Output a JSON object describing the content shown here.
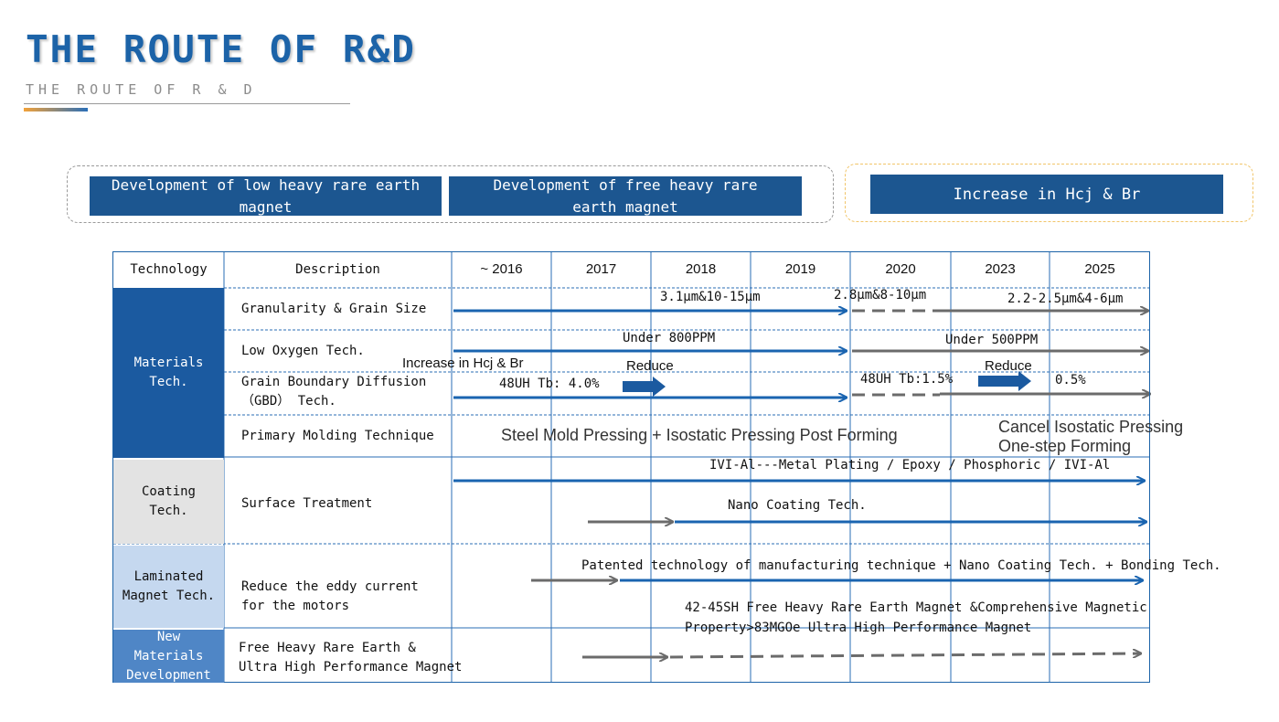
{
  "header": {
    "title": "THE ROUTE OF R&D",
    "subtitle": "THE ROUTE OF R & D"
  },
  "banners": [
    {
      "line1": "Development of low heavy rare earth",
      "line2": "magnet"
    },
    {
      "line1": "Development of free heavy rare",
      "line2": "earth magnet"
    },
    {
      "line1": "Increase in Hcj & Br",
      "line2": ""
    }
  ],
  "table": {
    "col_technology": "Technology",
    "col_description": "Description",
    "years": [
      "~ 2016",
      "2017",
      "2018",
      "2019",
      "2020",
      "2023",
      "2025"
    ],
    "categories": {
      "materials": {
        "line1": "Materials",
        "line2": "Tech."
      },
      "coating": {
        "line1": "Coating",
        "line2": "Tech."
      },
      "laminated": {
        "line1": "Laminated",
        "line2": "Magnet Tech."
      },
      "new_materials": {
        "line1": "New",
        "line2": "Materials",
        "line3": "Development"
      }
    },
    "descriptions": {
      "granularity": "Granularity & Grain Size",
      "low_oxygen": "Low Oxygen Tech.",
      "gbd_line1": "Grain Boundary Diffusion",
      "gbd_line2": "（GBD） Tech.",
      "molding": "Primary Molding Technique",
      "surface": "Surface Treatment",
      "eddy_line1": "Reduce the eddy current",
      "eddy_line2": "for the motors",
      "free_line1": "Free Heavy Rare Earth &",
      "free_line2": "Ultra High Performance Magnet"
    },
    "annotations": {
      "grain_1": "3.1μm&10-15μm",
      "grain_2": "2.8μm&8-10μm",
      "grain_3": "2.2-2.5μm&4-6μm",
      "oxygen_1": "Under 800PPM",
      "oxygen_2": "Under 500PPM",
      "hcj_br": "Increase in Hcj & Br",
      "reduce_1": "Reduce",
      "reduce_2": "Reduce",
      "gbd_1": "48UH  Tb: 4.0%",
      "gbd_2": "48UH  Tb:1.5%",
      "gbd_3": "0.5%",
      "molding_1": "Steel Mold Pressing + Isostatic Pressing Post Forming",
      "molding_2a": "Cancel Isostatic Pressing",
      "molding_2b": "One-step Forming",
      "surface_1": "IVI-Al---Metal Plating / Epoxy / Phosphoric / IVI-Al",
      "surface_2": "Nano Coating Tech.",
      "laminated_1": "Patented technology of manufacturing technique + Nano Coating Tech. + Bonding Tech.",
      "laminated_2a": "42-45SH Free Heavy Rare Earth Magnet &Comprehensive Magnetic",
      "laminated_2b": "Property>83MGOe Ultra High Performance Magnet"
    }
  },
  "colors": {
    "accent_blue": "#1b5aa0",
    "arrow_blue": "#1a64b0",
    "arrow_gray": "#6b6b6b",
    "title_blue": "#1c63a8"
  }
}
